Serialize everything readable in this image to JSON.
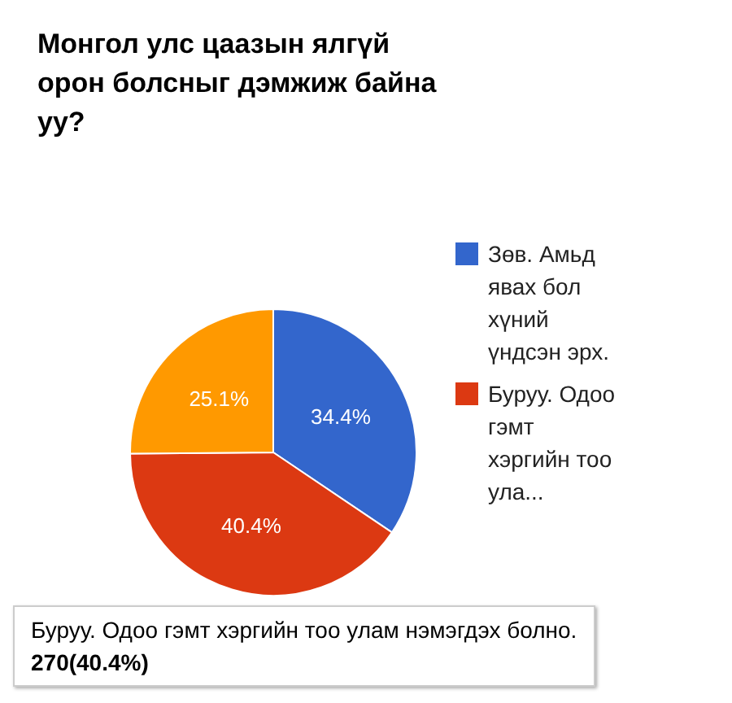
{
  "chart_data": {
    "type": "pie",
    "title": "Монгол улс цаазын ялгүй орон болсныг дэмжиж байна уу?",
    "categories": [
      "Зөв. Амьд явах бол хүний үндсэн эрх.",
      "Буруу. Одоо гэмт хэргийн тоо ула...",
      null
    ],
    "values": [
      34.4,
      40.4,
      25.1
    ],
    "colors": [
      "#3366cc",
      "#dc3912",
      "#ff9900"
    ],
    "value_labels": [
      "34.4%",
      "40.4%",
      "25.1%"
    ],
    "legend": "right",
    "annotations": [
      "Буруу. Одоо гэмт хэргийн тоо улам нэмэгдэх болно.",
      "270(40.4%)"
    ]
  }
}
